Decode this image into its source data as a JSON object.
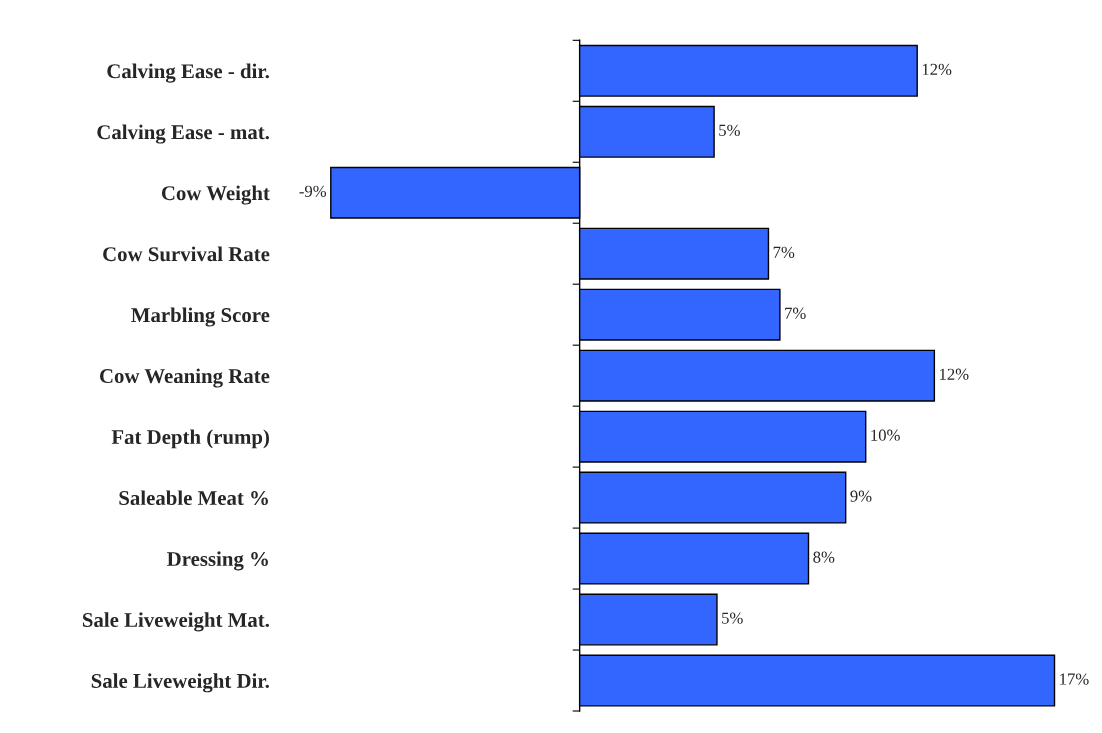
{
  "chart_data": {
    "type": "bar",
    "orientation": "horizontal",
    "categories": [
      "Calving Ease - dir.",
      "Calving Ease - mat.",
      "Cow Weight",
      "Cow Survival Rate",
      "Marbling Score",
      "Cow Weaning Rate",
      "Fat Depth (rump)",
      "Saleable Meat %",
      "Dressing %",
      "Sale Liveweight Mat.",
      "Sale Liveweight Dir."
    ],
    "values": [
      11.8,
      4.7,
      -8.7,
      6.6,
      7.0,
      12.4,
      10.0,
      9.3,
      8.0,
      4.8,
      16.6
    ],
    "value_labels": [
      "12%",
      "5%",
      "-9%",
      "7%",
      "7%",
      "12%",
      "10%",
      "9%",
      "8%",
      "5%",
      "17%"
    ],
    "color": "#3366ff",
    "grid": false,
    "legend": false
  }
}
